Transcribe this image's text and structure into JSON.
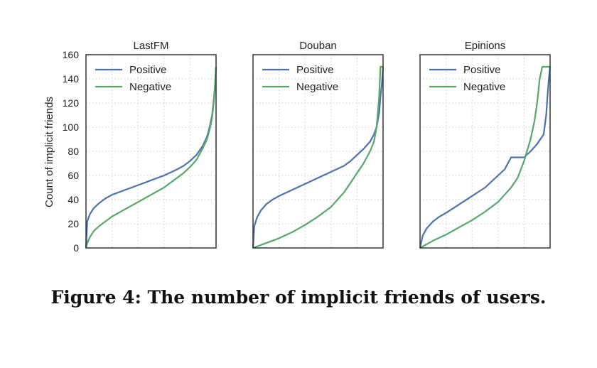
{
  "figure": {
    "caption": "Figure 4: The number of implicit friends of users.",
    "ylabel": "Count of implicit friends"
  },
  "chart_data": [
    {
      "type": "line",
      "title": "LastFM",
      "xlabel": "",
      "ylabel": "Count of implicit friends",
      "xlim": [
        0,
        1
      ],
      "ylim": [
        0,
        160
      ],
      "yticks": [
        0,
        20,
        40,
        60,
        80,
        100,
        120,
        140,
        160
      ],
      "grid": true,
      "legend_position": "top-left",
      "colors": {
        "Positive": "#4c72b0",
        "Negative": "#55a868"
      },
      "series": [
        {
          "name": "Positive",
          "x": [
            0,
            0.01,
            0.03,
            0.06,
            0.1,
            0.15,
            0.2,
            0.3,
            0.4,
            0.5,
            0.6,
            0.7,
            0.75,
            0.8,
            0.85,
            0.9,
            0.93,
            0.95,
            0.97,
            0.98,
            0.99,
            1.0
          ],
          "y": [
            0,
            22,
            28,
            33,
            37,
            41,
            44,
            48,
            52,
            56,
            60,
            65,
            68,
            72,
            77,
            85,
            92,
            100,
            110,
            120,
            132,
            150
          ]
        },
        {
          "name": "Negative",
          "x": [
            0,
            0.01,
            0.03,
            0.06,
            0.1,
            0.15,
            0.2,
            0.3,
            0.4,
            0.5,
            0.6,
            0.7,
            0.75,
            0.8,
            0.85,
            0.9,
            0.93,
            0.95,
            0.97,
            0.98,
            0.99,
            1.0
          ],
          "y": [
            0,
            4,
            9,
            14,
            18,
            22,
            26,
            32,
            38,
            44,
            50,
            58,
            62,
            67,
            73,
            83,
            90,
            98,
            108,
            118,
            130,
            150
          ]
        }
      ]
    },
    {
      "type": "line",
      "title": "Douban",
      "xlabel": "",
      "ylabel": "",
      "xlim": [
        0,
        1
      ],
      "ylim": [
        0,
        160
      ],
      "yticks": [
        0,
        20,
        40,
        60,
        80,
        100,
        120,
        140,
        160
      ],
      "grid": true,
      "legend_position": "top-left",
      "colors": {
        "Positive": "#4c72b0",
        "Negative": "#55a868"
      },
      "series": [
        {
          "name": "Positive",
          "x": [
            0,
            0.01,
            0.03,
            0.06,
            0.1,
            0.15,
            0.2,
            0.3,
            0.4,
            0.5,
            0.6,
            0.7,
            0.75,
            0.8,
            0.85,
            0.9,
            0.93,
            0.95,
            0.97,
            0.98,
            0.99,
            1.0
          ],
          "y": [
            0,
            18,
            25,
            31,
            36,
            40,
            43,
            48,
            53,
            58,
            63,
            68,
            72,
            77,
            82,
            88,
            94,
            100,
            112,
            125,
            135,
            150
          ]
        },
        {
          "name": "Negative",
          "x": [
            0,
            0.05,
            0.1,
            0.2,
            0.3,
            0.4,
            0.5,
            0.6,
            0.65,
            0.7,
            0.75,
            0.8,
            0.85,
            0.9,
            0.93,
            0.95,
            0.97,
            0.98,
            0.99,
            1.0
          ],
          "y": [
            0,
            2,
            4,
            8,
            13,
            19,
            26,
            34,
            40,
            46,
            54,
            62,
            70,
            80,
            88,
            100,
            125,
            150,
            150,
            150
          ]
        }
      ]
    },
    {
      "type": "line",
      "title": "Epinions",
      "xlabel": "",
      "ylabel": "",
      "xlim": [
        0,
        1
      ],
      "ylim": [
        0,
        160
      ],
      "yticks": [
        0,
        20,
        40,
        60,
        80,
        100,
        120,
        140,
        160
      ],
      "grid": true,
      "legend_position": "top-left",
      "colors": {
        "Positive": "#4c72b0",
        "Negative": "#55a868"
      },
      "series": [
        {
          "name": "Positive",
          "x": [
            0,
            0.02,
            0.05,
            0.1,
            0.15,
            0.2,
            0.3,
            0.4,
            0.5,
            0.55,
            0.6,
            0.65,
            0.7,
            0.75,
            0.8,
            0.85,
            0.9,
            0.95,
            0.97,
            0.98,
            0.99,
            1.0
          ],
          "y": [
            0,
            10,
            16,
            22,
            26,
            29,
            36,
            43,
            50,
            55,
            60,
            65,
            75,
            75,
            75,
            80,
            86,
            94,
            110,
            125,
            140,
            150
          ]
        },
        {
          "name": "Negative",
          "x": [
            0,
            0.05,
            0.1,
            0.2,
            0.3,
            0.4,
            0.5,
            0.6,
            0.65,
            0.7,
            0.75,
            0.8,
            0.85,
            0.88,
            0.9,
            0.92,
            0.94,
            0.95,
            0.97,
            1.0
          ],
          "y": [
            0,
            3,
            6,
            11,
            17,
            23,
            30,
            38,
            44,
            50,
            58,
            72,
            90,
            105,
            120,
            140,
            150,
            150,
            150,
            150
          ]
        }
      ]
    }
  ]
}
